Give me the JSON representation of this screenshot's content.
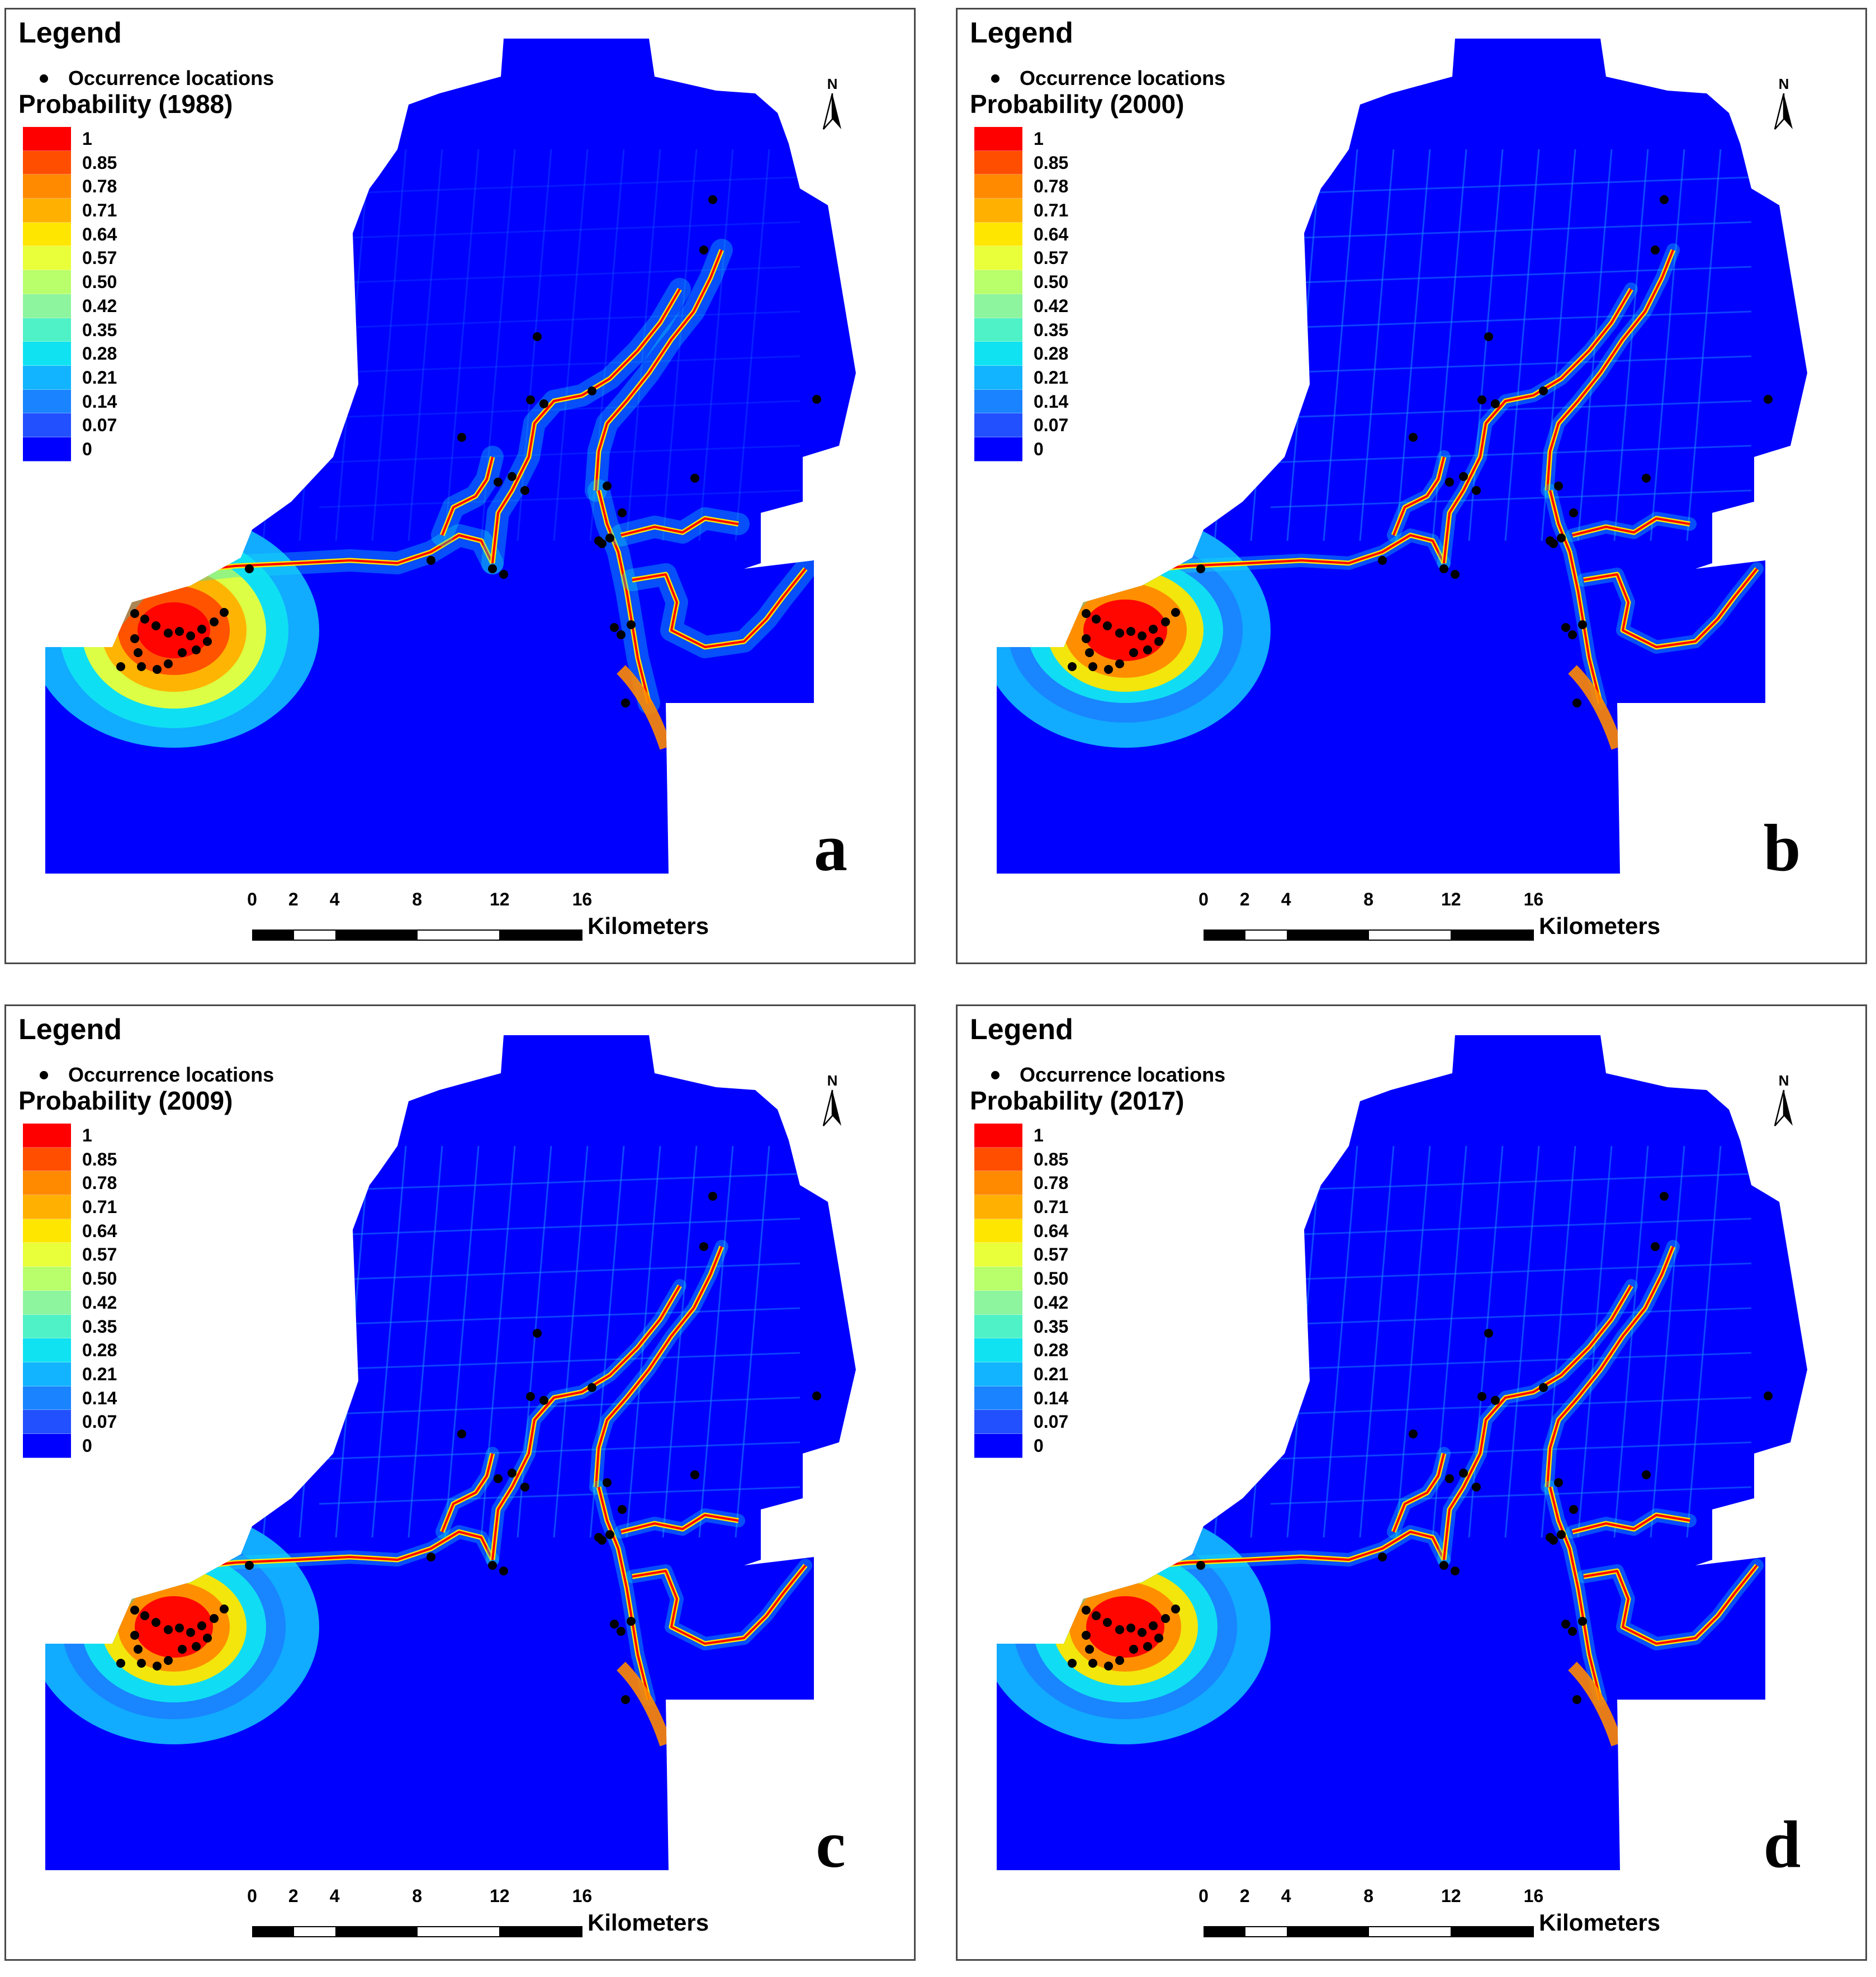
{
  "legend": {
    "title": "Legend",
    "occurrence_label": "Occurrence locations",
    "ramp_labels": [
      "1",
      "0.85",
      "0.78",
      "0.71",
      "0.64",
      "0.57",
      "0.50",
      "0.42",
      "0.35",
      "0.28",
      "0.21",
      "0.14",
      "0.07",
      "0"
    ],
    "ramp_colors": [
      "#ff0000",
      "#ff4e00",
      "#ff8a00",
      "#ffb000",
      "#ffe600",
      "#e8ff3a",
      "#b8ff6b",
      "#8cf59e",
      "#4ef2c6",
      "#10e2f2",
      "#12b4ff",
      "#1a83ff",
      "#2350ff",
      "#0000ff"
    ]
  },
  "north_label": "N",
  "scale": {
    "ticks": [
      "0",
      "2",
      "4",
      "8",
      "12",
      "16"
    ],
    "unit": "Kilometers"
  },
  "map_colors": {
    "background": "#0000ff",
    "low": "#1a83ff",
    "mid": "#10e2f2",
    "high": "#ff4e00",
    "max": "#ff0000",
    "point": "#000000"
  },
  "panels": [
    {
      "title": "Probability (1988)",
      "letter": "a"
    },
    {
      "title": "Probability (2000)",
      "letter": "b"
    },
    {
      "title": "Probability (2009)",
      "letter": "c"
    },
    {
      "title": "Probability (2017)",
      "letter": "d"
    }
  ]
}
